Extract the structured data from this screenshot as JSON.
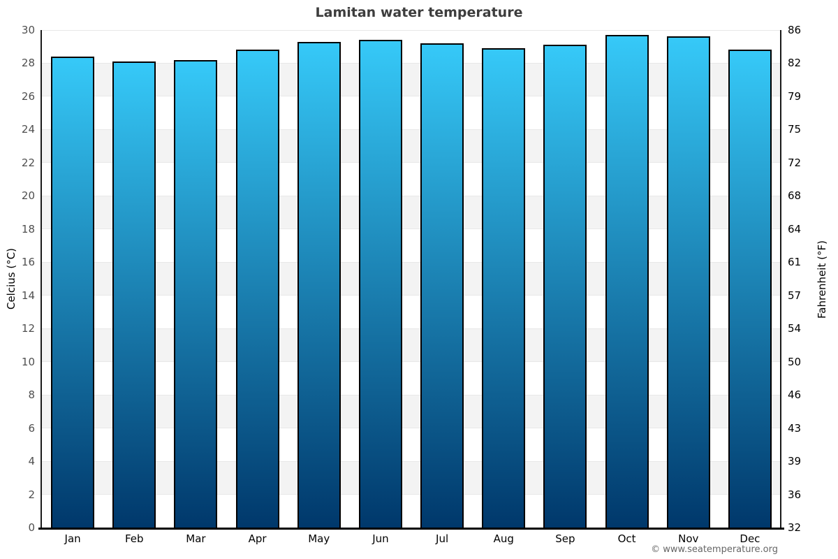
{
  "title": "Lamitan water temperature",
  "footer": "© www.seatemperature.org",
  "chart_data": {
    "type": "bar",
    "title": "Lamitan water temperature",
    "categories": [
      "Jan",
      "Feb",
      "Mar",
      "Apr",
      "May",
      "Jun",
      "Jul",
      "Aug",
      "Sep",
      "Oct",
      "Nov",
      "Dec"
    ],
    "values": [
      28.4,
      28.1,
      28.2,
      28.8,
      29.3,
      29.4,
      29.2,
      28.9,
      29.1,
      29.7,
      29.6,
      28.8
    ],
    "unit": "°C",
    "ylabel_left": "Celcius (°C)",
    "ylabel_right": "Fahrenheit (°F)",
    "ylim": [
      0,
      30
    ],
    "y_ticks": [
      {
        "c": 0,
        "f": 32
      },
      {
        "c": 2,
        "f": 36
      },
      {
        "c": 4,
        "f": 39
      },
      {
        "c": 6,
        "f": 43
      },
      {
        "c": 8,
        "f": 46
      },
      {
        "c": 10,
        "f": 50
      },
      {
        "c": 12,
        "f": 54
      },
      {
        "c": 14,
        "f": 57
      },
      {
        "c": 16,
        "f": 61
      },
      {
        "c": 18,
        "f": 64
      },
      {
        "c": 20,
        "f": 68
      },
      {
        "c": 22,
        "f": 72
      },
      {
        "c": 24,
        "f": 75
      },
      {
        "c": 26,
        "f": 79
      },
      {
        "c": 28,
        "f": 82
      },
      {
        "c": 30,
        "f": 86
      }
    ],
    "grid": "horizontal-bands-every-2C",
    "legend": "none",
    "colors": {
      "bar_top": "#36c9f8",
      "bar_bottom": "#00386b",
      "bar_border": "#000000",
      "band_gray": "#f3f3f3",
      "gridline": "#e8e8e8",
      "axis": "#000000",
      "title_text": "#3d3d3d",
      "left_tick_text": "#4f4f4f",
      "right_tick_text": "#000000",
      "footer_text": "#666666"
    }
  }
}
